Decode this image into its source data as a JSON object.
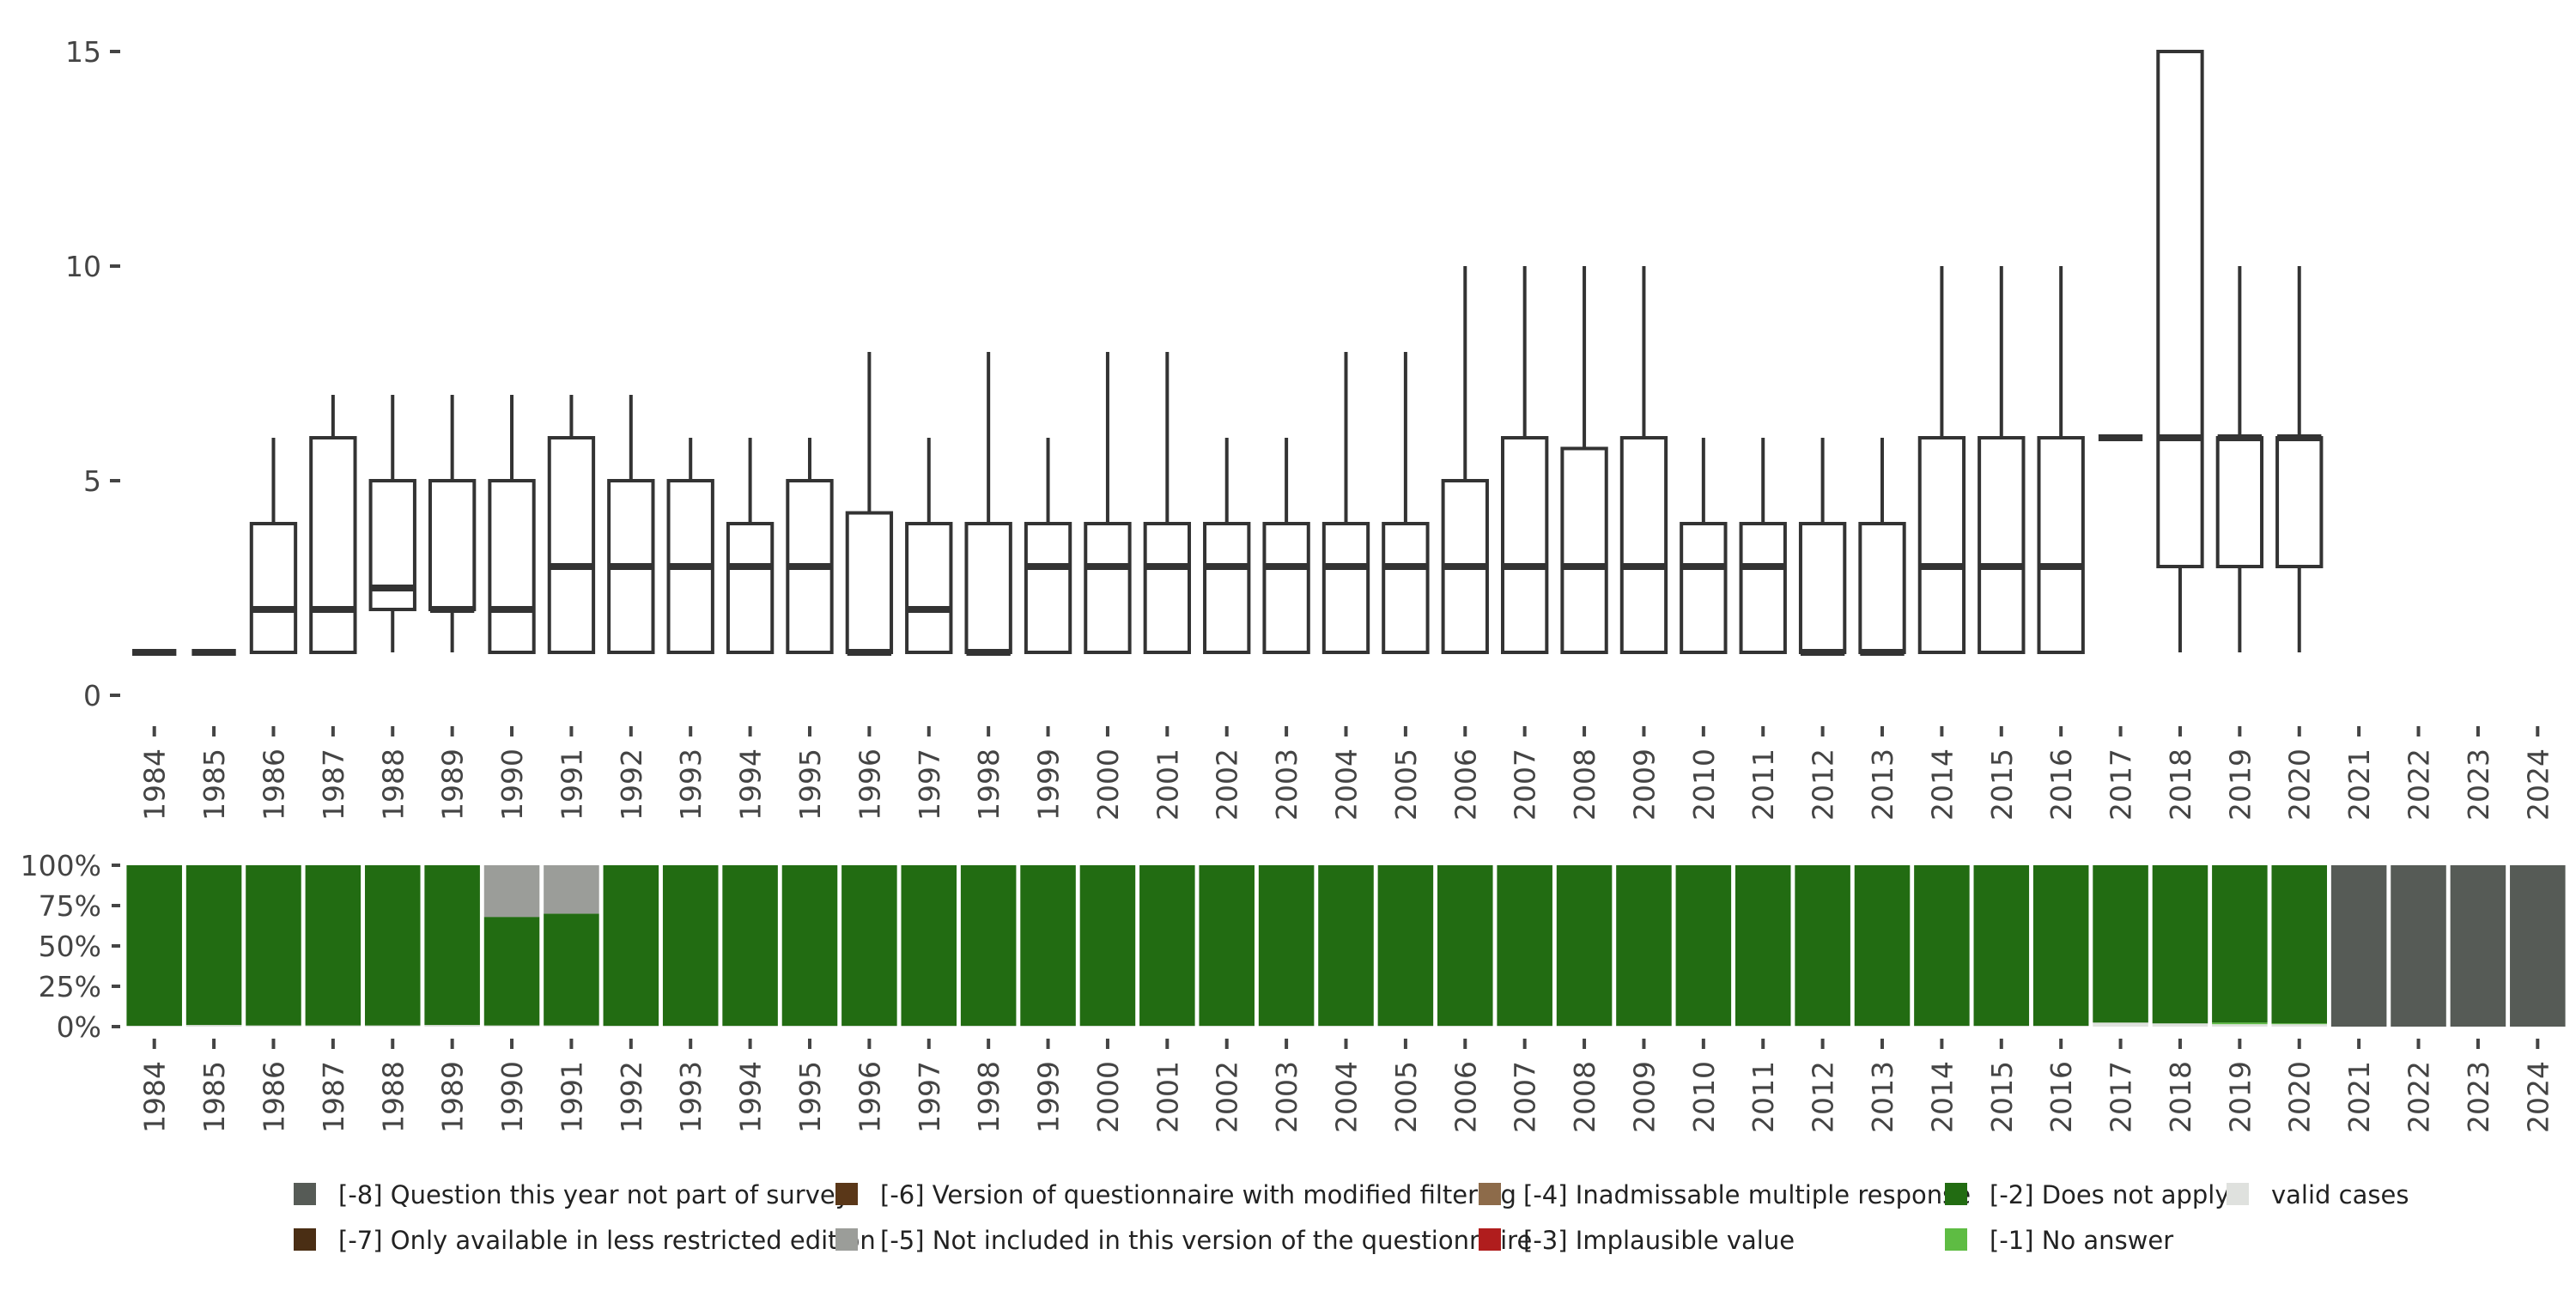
{
  "chart_data": [
    {
      "type": "box",
      "title": "",
      "xlabel": "",
      "ylabel": "",
      "ylim": [
        0,
        15
      ],
      "yticks": [
        0,
        5,
        10,
        15
      ],
      "categories": [
        "1984",
        "1985",
        "1986",
        "1987",
        "1988",
        "1989",
        "1990",
        "1991",
        "1992",
        "1993",
        "1994",
        "1995",
        "1996",
        "1997",
        "1998",
        "1999",
        "2000",
        "2001",
        "2002",
        "2003",
        "2004",
        "2005",
        "2006",
        "2007",
        "2008",
        "2009",
        "2010",
        "2011",
        "2012",
        "2013",
        "2014",
        "2015",
        "2016",
        "2017",
        "2018",
        "2019",
        "2020",
        "2021",
        "2022",
        "2023",
        "2024"
      ],
      "boxes": [
        {
          "year": "1984",
          "min": 1,
          "q1": 1,
          "median": 1,
          "q3": 1,
          "max": 1
        },
        {
          "year": "1985",
          "min": 1,
          "q1": 1,
          "median": 1,
          "q3": 1,
          "max": 1
        },
        {
          "year": "1986",
          "min": 1,
          "q1": 1,
          "median": 2,
          "q3": 4,
          "max": 6
        },
        {
          "year": "1987",
          "min": 1,
          "q1": 1,
          "median": 2,
          "q3": 6,
          "max": 7
        },
        {
          "year": "1988",
          "min": 1,
          "q1": 2,
          "median": 2.5,
          "q3": 5,
          "max": 7
        },
        {
          "year": "1989",
          "min": 1,
          "q1": 2,
          "median": 2,
          "q3": 5,
          "max": 7
        },
        {
          "year": "1990",
          "min": 1,
          "q1": 1,
          "median": 2,
          "q3": 5,
          "max": 7
        },
        {
          "year": "1991",
          "min": 1,
          "q1": 1,
          "median": 3,
          "q3": 6,
          "max": 7
        },
        {
          "year": "1992",
          "min": 1,
          "q1": 1,
          "median": 3,
          "q3": 5,
          "max": 7
        },
        {
          "year": "1993",
          "min": 1,
          "q1": 1,
          "median": 3,
          "q3": 5,
          "max": 6
        },
        {
          "year": "1994",
          "min": 1,
          "q1": 1,
          "median": 3,
          "q3": 4,
          "max": 6
        },
        {
          "year": "1995",
          "min": 1,
          "q1": 1,
          "median": 3,
          "q3": 5,
          "max": 6
        },
        {
          "year": "1996",
          "min": 1,
          "q1": 1,
          "median": 1,
          "q3": 4.25,
          "max": 8
        },
        {
          "year": "1997",
          "min": 1,
          "q1": 1,
          "median": 2,
          "q3": 4,
          "max": 6
        },
        {
          "year": "1998",
          "min": 1,
          "q1": 1,
          "median": 1,
          "q3": 4,
          "max": 8
        },
        {
          "year": "1999",
          "min": 1,
          "q1": 1,
          "median": 3,
          "q3": 4,
          "max": 6
        },
        {
          "year": "2000",
          "min": 1,
          "q1": 1,
          "median": 3,
          "q3": 4,
          "max": 8
        },
        {
          "year": "2001",
          "min": 1,
          "q1": 1,
          "median": 3,
          "q3": 4,
          "max": 8
        },
        {
          "year": "2002",
          "min": 1,
          "q1": 1,
          "median": 3,
          "q3": 4,
          "max": 6
        },
        {
          "year": "2003",
          "min": 1,
          "q1": 1,
          "median": 3,
          "q3": 4,
          "max": 6
        },
        {
          "year": "2004",
          "min": 1,
          "q1": 1,
          "median": 3,
          "q3": 4,
          "max": 8
        },
        {
          "year": "2005",
          "min": 1,
          "q1": 1,
          "median": 3,
          "q3": 4,
          "max": 8
        },
        {
          "year": "2006",
          "min": 1,
          "q1": 1,
          "median": 3,
          "q3": 5,
          "max": 10
        },
        {
          "year": "2007",
          "min": 1,
          "q1": 1,
          "median": 3,
          "q3": 6,
          "max": 10
        },
        {
          "year": "2008",
          "min": 1,
          "q1": 1,
          "median": 3,
          "q3": 5.75,
          "max": 10
        },
        {
          "year": "2009",
          "min": 1,
          "q1": 1,
          "median": 3,
          "q3": 6,
          "max": 10
        },
        {
          "year": "2010",
          "min": 1,
          "q1": 1,
          "median": 3,
          "q3": 4,
          "max": 6
        },
        {
          "year": "2011",
          "min": 1,
          "q1": 1,
          "median": 3,
          "q3": 4,
          "max": 6
        },
        {
          "year": "2012",
          "min": 1,
          "q1": 1,
          "median": 1,
          "q3": 4,
          "max": 6
        },
        {
          "year": "2013",
          "min": 1,
          "q1": 1,
          "median": 1,
          "q3": 4,
          "max": 6
        },
        {
          "year": "2014",
          "min": 1,
          "q1": 1,
          "median": 3,
          "q3": 6,
          "max": 10
        },
        {
          "year": "2015",
          "min": 1,
          "q1": 1,
          "median": 3,
          "q3": 6,
          "max": 10
        },
        {
          "year": "2016",
          "min": 1,
          "q1": 1,
          "median": 3,
          "q3": 6,
          "max": 10
        },
        {
          "year": "2017",
          "min": 6,
          "q1": 6,
          "median": 6,
          "q3": 6,
          "max": 6
        },
        {
          "year": "2018",
          "min": 1,
          "q1": 3,
          "median": 6,
          "q3": 15,
          "max": 15
        },
        {
          "year": "2019",
          "min": 1,
          "q1": 3,
          "median": 6,
          "q3": 6,
          "max": 10
        },
        {
          "year": "2020",
          "min": 1,
          "q1": 3,
          "median": 6,
          "q3": 6,
          "max": 10
        }
      ]
    },
    {
      "type": "stacked-bar",
      "title": "",
      "xlabel": "",
      "ylabel": "",
      "ylim": [
        0,
        100
      ],
      "yticks": [
        0,
        25,
        50,
        75,
        100
      ],
      "ytick_labels": [
        "0%",
        "25%",
        "50%",
        "75%",
        "100%"
      ],
      "categories": [
        "1984",
        "1985",
        "1986",
        "1987",
        "1988",
        "1989",
        "1990",
        "1991",
        "1992",
        "1993",
        "1994",
        "1995",
        "1996",
        "1997",
        "1998",
        "1999",
        "2000",
        "2001",
        "2002",
        "2003",
        "2004",
        "2005",
        "2006",
        "2007",
        "2008",
        "2009",
        "2010",
        "2011",
        "2012",
        "2013",
        "2014",
        "2015",
        "2016",
        "2017",
        "2018",
        "2019",
        "2020",
        "2021",
        "2022",
        "2023",
        "2024"
      ],
      "series": [
        {
          "name": "valid cases",
          "color": "#dfe1de",
          "values": [
            0.5,
            1,
            0.7,
            0.7,
            0.7,
            1,
            0.7,
            0.7,
            0.5,
            0.5,
            0.5,
            0.5,
            0.5,
            0.5,
            0.5,
            0.5,
            0.5,
            0.5,
            0.5,
            0.5,
            0.5,
            0.5,
            0.5,
            0.5,
            0.5,
            0.5,
            0.5,
            0.5,
            0.5,
            0.5,
            0.5,
            0.5,
            0.5,
            2.5,
            2,
            1.5,
            1.5,
            0,
            0,
            0,
            0
          ]
        },
        {
          "name": "[-1] No answer",
          "color": "#5ebc43",
          "values": [
            0,
            0,
            0,
            0,
            0,
            0,
            0,
            0,
            0,
            0,
            0,
            0,
            0,
            0,
            0,
            0,
            0,
            0,
            0,
            0,
            0,
            0,
            0,
            0,
            0,
            0,
            0,
            0,
            0,
            0,
            0,
            0,
            0,
            0,
            0,
            1,
            0.5,
            0,
            0,
            0,
            0
          ]
        },
        {
          "name": "[-2] Does not apply",
          "color": "#226c12",
          "values": [
            99.5,
            99,
            99.3,
            99.3,
            99.3,
            99,
            67.3,
            69.3,
            99.5,
            99.5,
            99.5,
            99.5,
            99.5,
            99.5,
            99.5,
            99.5,
            99.5,
            99.5,
            99.5,
            99.5,
            99.5,
            99.5,
            99.5,
            99.5,
            99.5,
            99.5,
            99.5,
            99.5,
            99.5,
            99.5,
            99.5,
            99.5,
            99.5,
            97.5,
            98,
            97.5,
            98,
            0,
            0,
            0,
            0
          ]
        },
        {
          "name": "[-5] Not included in this version of the questionnaire",
          "color": "#9b9d99",
          "values": [
            0,
            0,
            0,
            0,
            0,
            0,
            32,
            30,
            0,
            0,
            0,
            0,
            0,
            0,
            0,
            0,
            0,
            0,
            0,
            0,
            0,
            0,
            0,
            0,
            0,
            0,
            0,
            0,
            0,
            0,
            0,
            0,
            0,
            0,
            0,
            0,
            0,
            0,
            0,
            0,
            0
          ]
        },
        {
          "name": "[-8] Question this year not part of survey",
          "color": "#565b56",
          "values": [
            0,
            0,
            0,
            0,
            0,
            0,
            0,
            0,
            0,
            0,
            0,
            0,
            0,
            0,
            0,
            0,
            0,
            0,
            0,
            0,
            0,
            0,
            0,
            0,
            0,
            0,
            0,
            0,
            0,
            0,
            0,
            0,
            0,
            0,
            0,
            0,
            0,
            100,
            100,
            100,
            100
          ]
        }
      ]
    }
  ],
  "legend": {
    "items": [
      {
        "label": "[-8] Question this year not part of survey",
        "color": "#565b56"
      },
      {
        "label": "[-6] Version of questionnaire with modified filtering",
        "color": "#5a3718"
      },
      {
        "label": "[-4] Inadmissable multiple response",
        "color": "#8d6b4a"
      },
      {
        "label": "[-2] Does not apply",
        "color": "#226c12"
      },
      {
        "label": "valid cases",
        "color": "#dfe1de"
      },
      {
        "label": "[-7] Only available in less restricted edition",
        "color": "#4a2e14"
      },
      {
        "label": "[-5] Not included in this version of the questionnaire",
        "color": "#9b9d99"
      },
      {
        "label": "[-3] Implausible value",
        "color": "#b01d1d"
      },
      {
        "label": "[-1] No answer",
        "color": "#5ebc43"
      }
    ]
  },
  "colors": {
    "text": "#444444",
    "box_stroke": "#333333",
    "box_fill": "#ffffff",
    "background": "#ffffff"
  }
}
